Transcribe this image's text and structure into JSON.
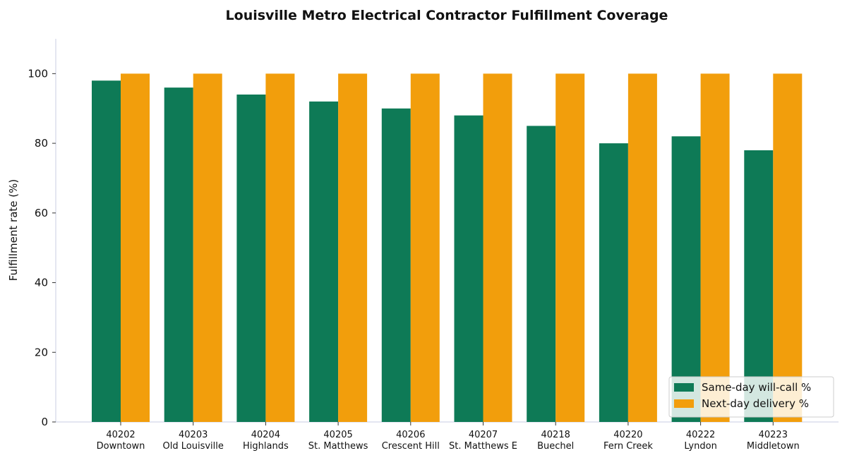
{
  "chart_data": {
    "type": "bar",
    "title": "Louisville Metro Electrical Contractor Fulfillment Coverage",
    "xlabel": "",
    "ylabel": "Fulfillment rate (%)",
    "ylim": [
      0,
      110
    ],
    "yticks": [
      0,
      20,
      40,
      60,
      80,
      100
    ],
    "grid": false,
    "legend_position": "bottom-right",
    "categories": [
      [
        "40202",
        "Downtown"
      ],
      [
        "40203",
        "Old Louisville"
      ],
      [
        "40204",
        "Highlands"
      ],
      [
        "40205",
        "St. Matthews"
      ],
      [
        "40206",
        "Crescent Hill"
      ],
      [
        "40207",
        "St. Matthews E"
      ],
      [
        "40218",
        "Buechel"
      ],
      [
        "40220",
        "Fern Creek"
      ],
      [
        "40222",
        "Lyndon"
      ],
      [
        "40223",
        "Middletown"
      ]
    ],
    "series": [
      {
        "name": "Same-day will-call %",
        "color": "#0e7a56",
        "values": [
          98,
          96,
          94,
          92,
          90,
          88,
          85,
          80,
          82,
          78
        ]
      },
      {
        "name": "Next-day delivery %",
        "color": "#f29e0c",
        "values": [
          100,
          100,
          100,
          100,
          100,
          100,
          100,
          100,
          100,
          100
        ]
      }
    ]
  }
}
